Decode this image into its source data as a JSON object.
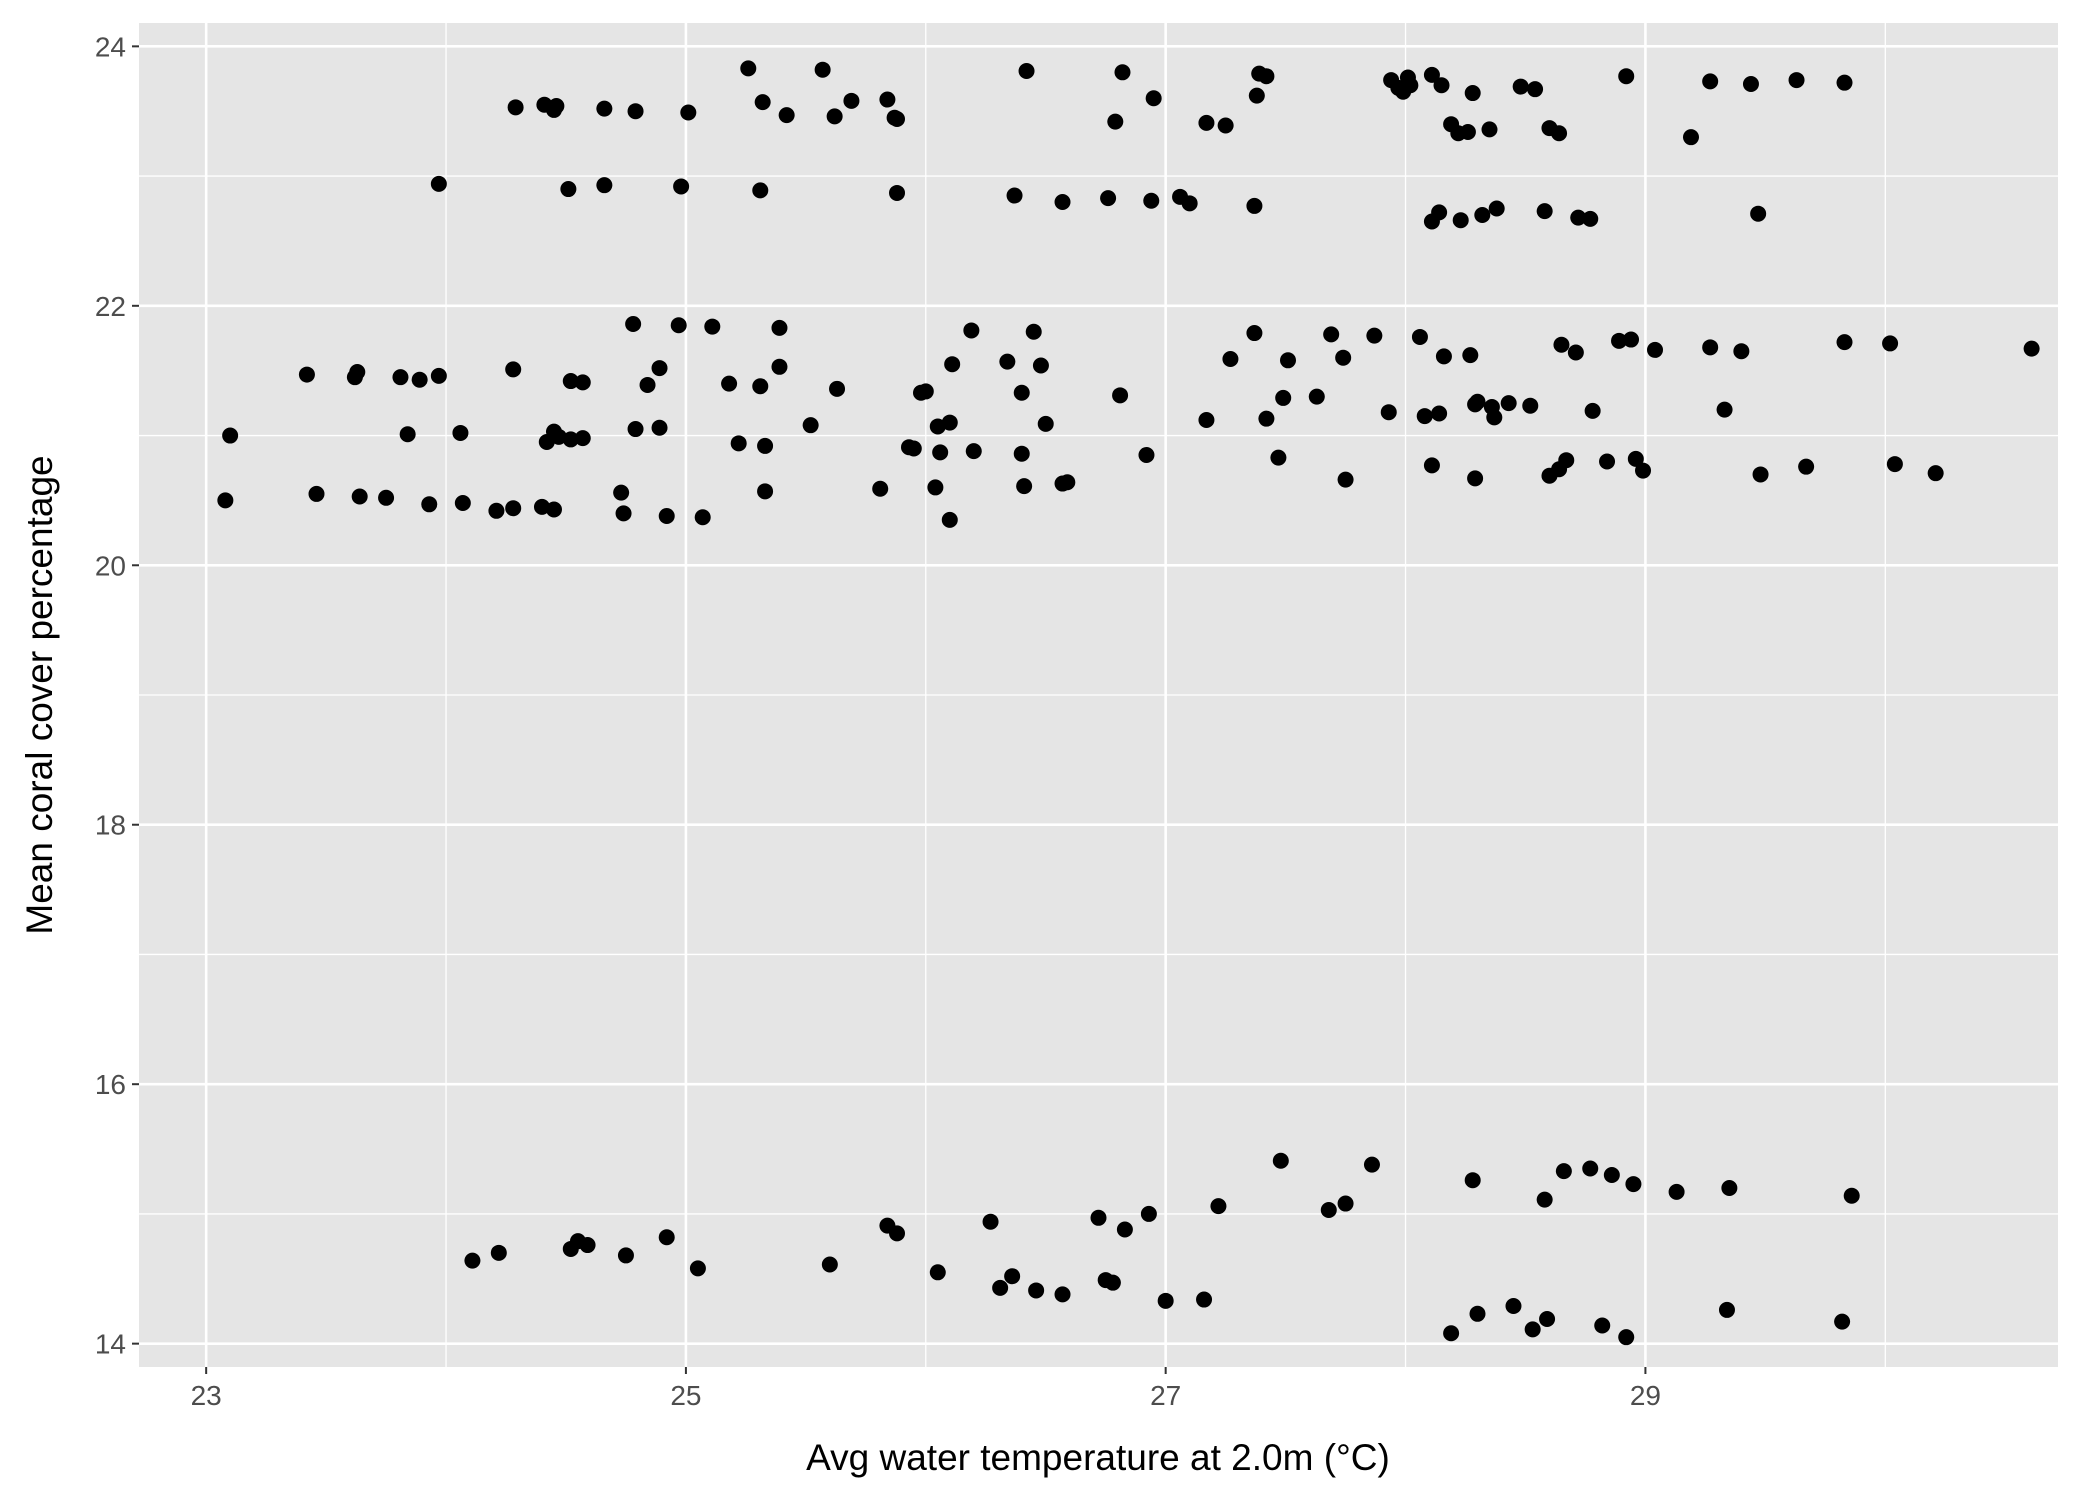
{
  "chart_data": {
    "type": "scatter",
    "title": "",
    "xlabel": "Avg water temperature at 2.0m (°C)",
    "ylabel": "Mean coral cover percentage",
    "xlim": [
      22.72,
      30.72
    ],
    "ylim": [
      13.82,
      24.18
    ],
    "x_ticks": [
      23,
      25,
      27,
      29
    ],
    "x_tick_labels": [
      "23",
      "25",
      "27",
      "29"
    ],
    "y_ticks": [
      14,
      16,
      18,
      20,
      22,
      24
    ],
    "y_tick_labels": [
      "14",
      "16",
      "18",
      "20",
      "22",
      "24"
    ],
    "grid": true,
    "panel_color": "#e5e5e5",
    "grid_color": "#ffffff",
    "point_color": "#000000",
    "legend": "none",
    "points": [
      [
        24.29,
        23.53
      ],
      [
        24.41,
        23.55
      ],
      [
        24.45,
        23.51
      ],
      [
        24.46,
        23.54
      ],
      [
        24.66,
        23.52
      ],
      [
        24.79,
        23.5
      ],
      [
        25.01,
        23.49
      ],
      [
        25.26,
        23.83
      ],
      [
        25.32,
        23.57
      ],
      [
        25.42,
        23.47
      ],
      [
        25.57,
        23.82
      ],
      [
        25.62,
        23.46
      ],
      [
        25.69,
        23.58
      ],
      [
        25.84,
        23.59
      ],
      [
        25.87,
        23.45
      ],
      [
        25.88,
        23.44
      ],
      [
        26.42,
        23.81
      ],
      [
        26.79,
        23.42
      ],
      [
        26.82,
        23.8
      ],
      [
        26.95,
        23.6
      ],
      [
        27.17,
        23.41
      ],
      [
        27.25,
        23.39
      ],
      [
        27.38,
        23.62
      ],
      [
        27.39,
        23.79
      ],
      [
        27.42,
        23.77
      ],
      [
        27.94,
        23.74
      ],
      [
        27.97,
        23.68
      ],
      [
        27.99,
        23.65
      ],
      [
        28.01,
        23.76
      ],
      [
        28.02,
        23.7
      ],
      [
        28.11,
        23.78
      ],
      [
        28.15,
        23.7
      ],
      [
        28.19,
        23.4
      ],
      [
        28.22,
        23.33
      ],
      [
        28.26,
        23.34
      ],
      [
        28.28,
        23.64
      ],
      [
        28.35,
        23.36
      ],
      [
        28.48,
        23.69
      ],
      [
        28.54,
        23.67
      ],
      [
        28.6,
        23.37
      ],
      [
        28.64,
        23.33
      ],
      [
        28.92,
        23.77
      ],
      [
        29.19,
        23.3
      ],
      [
        29.27,
        23.73
      ],
      [
        29.44,
        23.71
      ],
      [
        29.63,
        23.74
      ],
      [
        29.83,
        23.72
      ],
      [
        23.97,
        22.94
      ],
      [
        24.51,
        22.9
      ],
      [
        24.66,
        22.93
      ],
      [
        24.98,
        22.92
      ],
      [
        25.31,
        22.89
      ],
      [
        25.88,
        22.87
      ],
      [
        26.37,
        22.85
      ],
      [
        26.57,
        22.8
      ],
      [
        26.76,
        22.83
      ],
      [
        26.94,
        22.81
      ],
      [
        27.06,
        22.84
      ],
      [
        27.1,
        22.79
      ],
      [
        27.37,
        22.77
      ],
      [
        28.11,
        22.65
      ],
      [
        28.14,
        22.72
      ],
      [
        28.23,
        22.66
      ],
      [
        28.32,
        22.7
      ],
      [
        28.38,
        22.75
      ],
      [
        28.58,
        22.73
      ],
      [
        28.72,
        22.68
      ],
      [
        28.77,
        22.67
      ],
      [
        29.47,
        22.71
      ],
      [
        23.42,
        21.47
      ],
      [
        23.62,
        21.45
      ],
      [
        23.63,
        21.49
      ],
      [
        23.81,
        21.45
      ],
      [
        23.89,
        21.43
      ],
      [
        23.97,
        21.46
      ],
      [
        24.28,
        21.51
      ],
      [
        24.52,
        21.42
      ],
      [
        24.57,
        21.41
      ],
      [
        24.78,
        21.86
      ],
      [
        24.84,
        21.39
      ],
      [
        24.89,
        21.52
      ],
      [
        24.97,
        21.85
      ],
      [
        25.11,
        21.84
      ],
      [
        25.18,
        21.4
      ],
      [
        25.31,
        21.38
      ],
      [
        25.39,
        21.53
      ],
      [
        25.39,
        21.83
      ],
      [
        25.63,
        21.36
      ],
      [
        25.98,
        21.33
      ],
      [
        26.0,
        21.34
      ],
      [
        26.11,
        21.55
      ],
      [
        26.19,
        21.81
      ],
      [
        26.34,
        21.57
      ],
      [
        26.4,
        21.33
      ],
      [
        26.45,
        21.8
      ],
      [
        26.48,
        21.54
      ],
      [
        26.81,
        21.31
      ],
      [
        27.27,
        21.59
      ],
      [
        27.37,
        21.79
      ],
      [
        27.49,
        21.29
      ],
      [
        27.51,
        21.58
      ],
      [
        27.63,
        21.3
      ],
      [
        27.69,
        21.78
      ],
      [
        27.74,
        21.6
      ],
      [
        27.87,
        21.77
      ],
      [
        28.06,
        21.76
      ],
      [
        28.16,
        21.61
      ],
      [
        28.27,
        21.62
      ],
      [
        28.65,
        21.7
      ],
      [
        28.71,
        21.64
      ],
      [
        28.89,
        21.73
      ],
      [
        28.94,
        21.74
      ],
      [
        29.04,
        21.66
      ],
      [
        29.27,
        21.68
      ],
      [
        29.4,
        21.65
      ],
      [
        29.83,
        21.72
      ],
      [
        30.02,
        21.71
      ],
      [
        30.61,
        21.67
      ],
      [
        23.1,
        21.0
      ],
      [
        23.84,
        21.01
      ],
      [
        24.06,
        21.02
      ],
      [
        24.42,
        20.95
      ],
      [
        24.45,
        21.03
      ],
      [
        24.47,
        20.99
      ],
      [
        24.52,
        20.97
      ],
      [
        24.57,
        20.98
      ],
      [
        24.79,
        21.05
      ],
      [
        24.89,
        21.06
      ],
      [
        25.22,
        20.94
      ],
      [
        25.33,
        20.92
      ],
      [
        25.52,
        21.08
      ],
      [
        25.93,
        20.91
      ],
      [
        25.95,
        20.9
      ],
      [
        26.05,
        21.07
      ],
      [
        26.06,
        20.87
      ],
      [
        26.1,
        21.1
      ],
      [
        26.2,
        20.88
      ],
      [
        26.4,
        20.86
      ],
      [
        26.5,
        21.09
      ],
      [
        26.92,
        20.85
      ],
      [
        27.17,
        21.12
      ],
      [
        27.42,
        21.13
      ],
      [
        27.47,
        20.83
      ],
      [
        27.93,
        21.18
      ],
      [
        28.08,
        21.15
      ],
      [
        28.14,
        21.17
      ],
      [
        28.29,
        21.24
      ],
      [
        28.3,
        21.26
      ],
      [
        28.36,
        21.22
      ],
      [
        28.37,
        21.14
      ],
      [
        28.43,
        21.25
      ],
      [
        28.52,
        21.23
      ],
      [
        28.78,
        21.19
      ],
      [
        29.33,
        21.2
      ],
      [
        23.08,
        20.5
      ],
      [
        23.46,
        20.55
      ],
      [
        23.64,
        20.53
      ],
      [
        23.75,
        20.52
      ],
      [
        23.93,
        20.47
      ],
      [
        24.07,
        20.48
      ],
      [
        24.21,
        20.42
      ],
      [
        24.28,
        20.44
      ],
      [
        24.4,
        20.45
      ],
      [
        24.45,
        20.43
      ],
      [
        24.73,
        20.56
      ],
      [
        24.74,
        20.4
      ],
      [
        24.92,
        20.38
      ],
      [
        25.07,
        20.37
      ],
      [
        25.33,
        20.57
      ],
      [
        25.81,
        20.59
      ],
      [
        26.04,
        20.6
      ],
      [
        26.1,
        20.35
      ],
      [
        26.41,
        20.61
      ],
      [
        26.57,
        20.63
      ],
      [
        26.59,
        20.64
      ],
      [
        27.75,
        20.66
      ],
      [
        28.11,
        20.77
      ],
      [
        28.29,
        20.67
      ],
      [
        28.6,
        20.69
      ],
      [
        28.64,
        20.74
      ],
      [
        28.67,
        20.81
      ],
      [
        28.84,
        20.8
      ],
      [
        28.96,
        20.82
      ],
      [
        28.99,
        20.73
      ],
      [
        29.48,
        20.7
      ],
      [
        29.67,
        20.76
      ],
      [
        30.04,
        20.78
      ],
      [
        30.21,
        20.71
      ],
      [
        24.11,
        14.64
      ],
      [
        24.22,
        14.7
      ],
      [
        24.52,
        14.73
      ],
      [
        24.55,
        14.79
      ],
      [
        24.59,
        14.76
      ],
      [
        24.75,
        14.68
      ],
      [
        24.92,
        14.82
      ],
      [
        25.05,
        14.58
      ],
      [
        25.6,
        14.61
      ],
      [
        25.84,
        14.91
      ],
      [
        25.88,
        14.85
      ],
      [
        26.05,
        14.55
      ],
      [
        26.27,
        14.94
      ],
      [
        26.31,
        14.43
      ],
      [
        26.36,
        14.52
      ],
      [
        26.46,
        14.41
      ],
      [
        26.57,
        14.38
      ],
      [
        26.72,
        14.97
      ],
      [
        26.75,
        14.49
      ],
      [
        26.78,
        14.47
      ],
      [
        26.83,
        14.88
      ],
      [
        26.93,
        15.0
      ],
      [
        27.0,
        14.33
      ],
      [
        27.16,
        14.34
      ],
      [
        27.22,
        15.06
      ],
      [
        27.48,
        15.41
      ],
      [
        27.68,
        15.03
      ],
      [
        27.75,
        15.08
      ],
      [
        27.86,
        15.38
      ],
      [
        28.19,
        14.08
      ],
      [
        28.28,
        15.26
      ],
      [
        28.3,
        14.23
      ],
      [
        28.45,
        14.29
      ],
      [
        28.53,
        14.11
      ],
      [
        28.58,
        15.11
      ],
      [
        28.59,
        14.19
      ],
      [
        28.66,
        15.33
      ],
      [
        28.77,
        15.35
      ],
      [
        28.82,
        14.14
      ],
      [
        28.86,
        15.3
      ],
      [
        28.92,
        14.05
      ],
      [
        28.95,
        15.23
      ],
      [
        29.13,
        15.17
      ],
      [
        29.34,
        14.26
      ],
      [
        29.35,
        15.2
      ],
      [
        29.82,
        14.17
      ],
      [
        29.86,
        15.14
      ]
    ]
  }
}
